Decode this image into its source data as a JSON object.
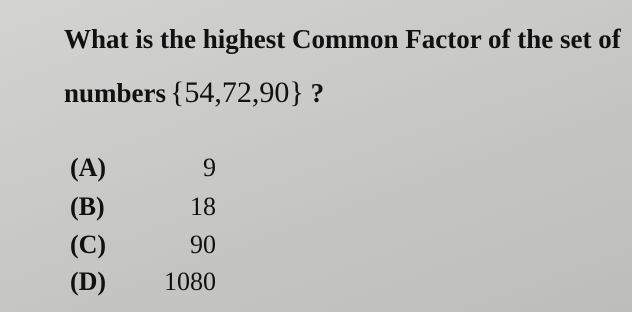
{
  "question": {
    "line1": "What is the highest Common Factor of the set of",
    "line2_prefix": "numbers",
    "set": "{54,72,90}",
    "suffix": "?"
  },
  "options": [
    {
      "label": "(A)",
      "value": 9
    },
    {
      "label": "(B)",
      "value": 18
    },
    {
      "label": "(C)",
      "value": 90
    },
    {
      "label": "(D)",
      "value": 1080
    }
  ]
}
